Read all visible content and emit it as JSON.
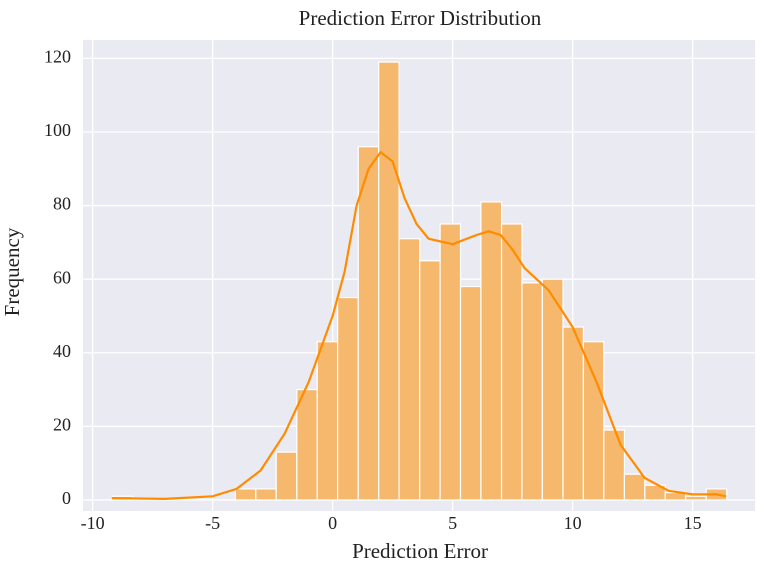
{
  "chart_data": {
    "type": "histogram",
    "title": "Prediction Error Distribution",
    "x_label": "Prediction Error",
    "y_label": "Frequency",
    "bins": [
      -9.17,
      -8.32,
      -7.46,
      -6.61,
      -5.76,
      -4.9,
      -4.05,
      -3.2,
      -2.35,
      -1.49,
      -0.64,
      0.21,
      1.07,
      1.92,
      2.77,
      3.63,
      4.48,
      5.33,
      6.18,
      7.04,
      7.89,
      8.74,
      9.6,
      10.45,
      11.3,
      12.16,
      13.01,
      13.86,
      14.71,
      15.57,
      16.42
    ],
    "values": [
      1,
      0,
      0,
      0,
      0,
      0,
      3,
      3,
      13,
      30,
      43,
      55,
      96,
      119,
      71,
      65,
      75,
      58,
      81,
      75,
      59,
      60,
      47,
      43,
      19,
      7,
      4,
      2,
      1,
      3
    ],
    "color": "#f5b86c",
    "kde": {
      "x": [
        -9.2,
        -7,
        -5,
        -4,
        -3,
        -2,
        -1,
        0,
        0.5,
        1,
        1.5,
        2,
        2.5,
        3,
        3.5,
        4,
        5,
        6,
        6.5,
        7,
        7.5,
        8,
        9,
        10,
        11,
        12,
        13,
        14,
        15,
        16,
        16.4
      ],
      "values": [
        0.5,
        0.3,
        1,
        3,
        8,
        18,
        32,
        50,
        62,
        80,
        90,
        94.5,
        92,
        82,
        75,
        71,
        69.5,
        72,
        73,
        72,
        68,
        63,
        57,
        47,
        32,
        15,
        6,
        2.5,
        1.5,
        1.5,
        1
      ],
      "color": "#ff8c00"
    },
    "xlim": [
      -10.4,
      17.6
    ],
    "ylim": [
      -3,
      125
    ],
    "xticks": [
      -10,
      -5,
      0,
      5,
      10,
      15
    ],
    "yticks": [
      0,
      20,
      40,
      60,
      80,
      100,
      120
    ],
    "grid": true
  }
}
